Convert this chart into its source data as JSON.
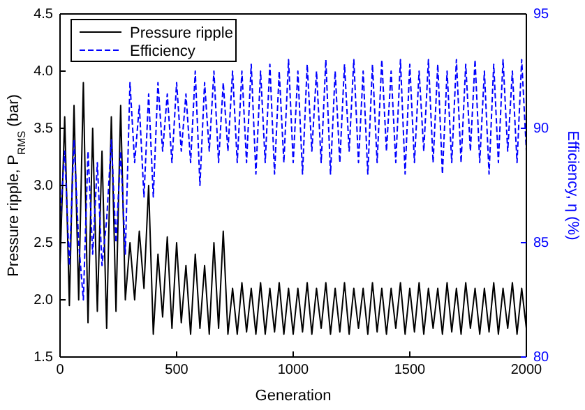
{
  "chart_data": {
    "type": "line",
    "xlabel": "Generation",
    "ylabel": "Pressure ripple, P$_{RMS}$ (bar)",
    "y2label": "Efficiency, η (%)",
    "x": [
      0,
      20,
      40,
      60,
      80,
      100,
      120,
      140,
      160,
      180,
      200,
      220,
      240,
      260,
      280,
      300,
      320,
      340,
      360,
      380,
      400,
      420,
      440,
      460,
      480,
      500,
      520,
      540,
      560,
      580,
      600,
      620,
      640,
      660,
      680,
      700,
      720,
      740,
      760,
      780,
      800,
      820,
      840,
      860,
      880,
      900,
      920,
      940,
      960,
      980,
      1000,
      1020,
      1040,
      1060,
      1080,
      1100,
      1120,
      1140,
      1160,
      1180,
      1200,
      1220,
      1240,
      1260,
      1280,
      1300,
      1320,
      1340,
      1360,
      1380,
      1400,
      1420,
      1440,
      1460,
      1480,
      1500,
      1520,
      1540,
      1560,
      1580,
      1600,
      1620,
      1640,
      1660,
      1680,
      1700,
      1720,
      1740,
      1760,
      1780,
      1800,
      1820,
      1840,
      1860,
      1880,
      1900,
      1920,
      1940,
      1960,
      1980,
      2000
    ],
    "series": [
      {
        "name": "Pressure ripple",
        "color": "#000000",
        "line_style": "solid",
        "values": [
          2.3,
          3.6,
          1.95,
          3.7,
          2.0,
          3.9,
          1.8,
          3.5,
          1.9,
          3.3,
          1.75,
          3.6,
          1.9,
          3.7,
          2.0,
          2.5,
          2.0,
          2.6,
          2.1,
          3.0,
          1.7,
          2.4,
          1.85,
          2.55,
          1.75,
          2.5,
          1.8,
          2.3,
          1.7,
          2.4,
          1.75,
          2.3,
          1.7,
          2.5,
          1.75,
          2.6,
          1.7,
          2.1,
          1.7,
          2.15,
          1.72,
          2.1,
          1.7,
          2.15,
          1.7,
          2.1,
          1.72,
          2.15,
          1.7,
          2.1,
          1.7,
          2.1,
          1.72,
          2.15,
          1.7,
          2.1,
          1.75,
          2.15,
          1.7,
          2.1,
          1.72,
          2.15,
          1.7,
          2.1,
          1.75,
          2.1,
          1.7,
          2.15,
          1.72,
          2.1,
          1.7,
          2.1,
          1.75,
          2.15,
          1.7,
          2.1,
          1.72,
          2.15,
          1.7,
          2.1,
          1.75,
          2.1,
          1.7,
          2.15,
          1.72,
          2.1,
          1.7,
          2.15,
          1.75,
          2.1,
          1.7,
          2.1,
          1.72,
          2.15,
          1.7,
          2.1,
          1.75,
          2.15,
          1.7,
          2.1,
          1.75
        ]
      },
      {
        "name": "Efficiency",
        "color": "#0000ff",
        "line_style": "dashed",
        "axis": "y2",
        "values": [
          86,
          89,
          84,
          89.5,
          85,
          82.5,
          89,
          84.5,
          88.5,
          84,
          86,
          89.5,
          85,
          89,
          84.5,
          92,
          88.5,
          91,
          87,
          91.5,
          87,
          92,
          89,
          91.5,
          88.5,
          92,
          89,
          91.5,
          88.5,
          92.5,
          87.5,
          92,
          89,
          92.5,
          88.5,
          92,
          89,
          92.5,
          88.5,
          92.5,
          88.5,
          92.8,
          88,
          92.5,
          88.5,
          92.8,
          88,
          92.5,
          88.5,
          93,
          88.5,
          92.5,
          88,
          92.8,
          89,
          92.5,
          88.5,
          93,
          88,
          92.5,
          88.5,
          92.8,
          89,
          93,
          88.5,
          92.5,
          88,
          92.8,
          88.5,
          93,
          89,
          92.5,
          88.5,
          93,
          88,
          92.8,
          88.5,
          92.5,
          89,
          93,
          88.5,
          92.8,
          88,
          92.5,
          88.5,
          93,
          88.5,
          92.8,
          89,
          93,
          88.5,
          92.5,
          88,
          92.8,
          88.5,
          93,
          89,
          92.5,
          88.5,
          93,
          89
        ]
      }
    ],
    "xlim": [
      0,
      2000
    ],
    "xticks": [
      0,
      500,
      1000,
      1500,
      2000
    ],
    "ylim": [
      1.5,
      4.5
    ],
    "yticks": [
      1.5,
      {
        "value": 2.0,
        "label": "2.0"
      },
      2.5,
      {
        "value": 3.0,
        "label": "3.0"
      },
      3.5,
      {
        "value": 4.0,
        "label": "4.0"
      },
      4.5
    ],
    "y2lim": [
      80,
      95
    ],
    "y2ticks": [
      80,
      85,
      90,
      95
    ],
    "legend": "top left",
    "grid": false
  }
}
